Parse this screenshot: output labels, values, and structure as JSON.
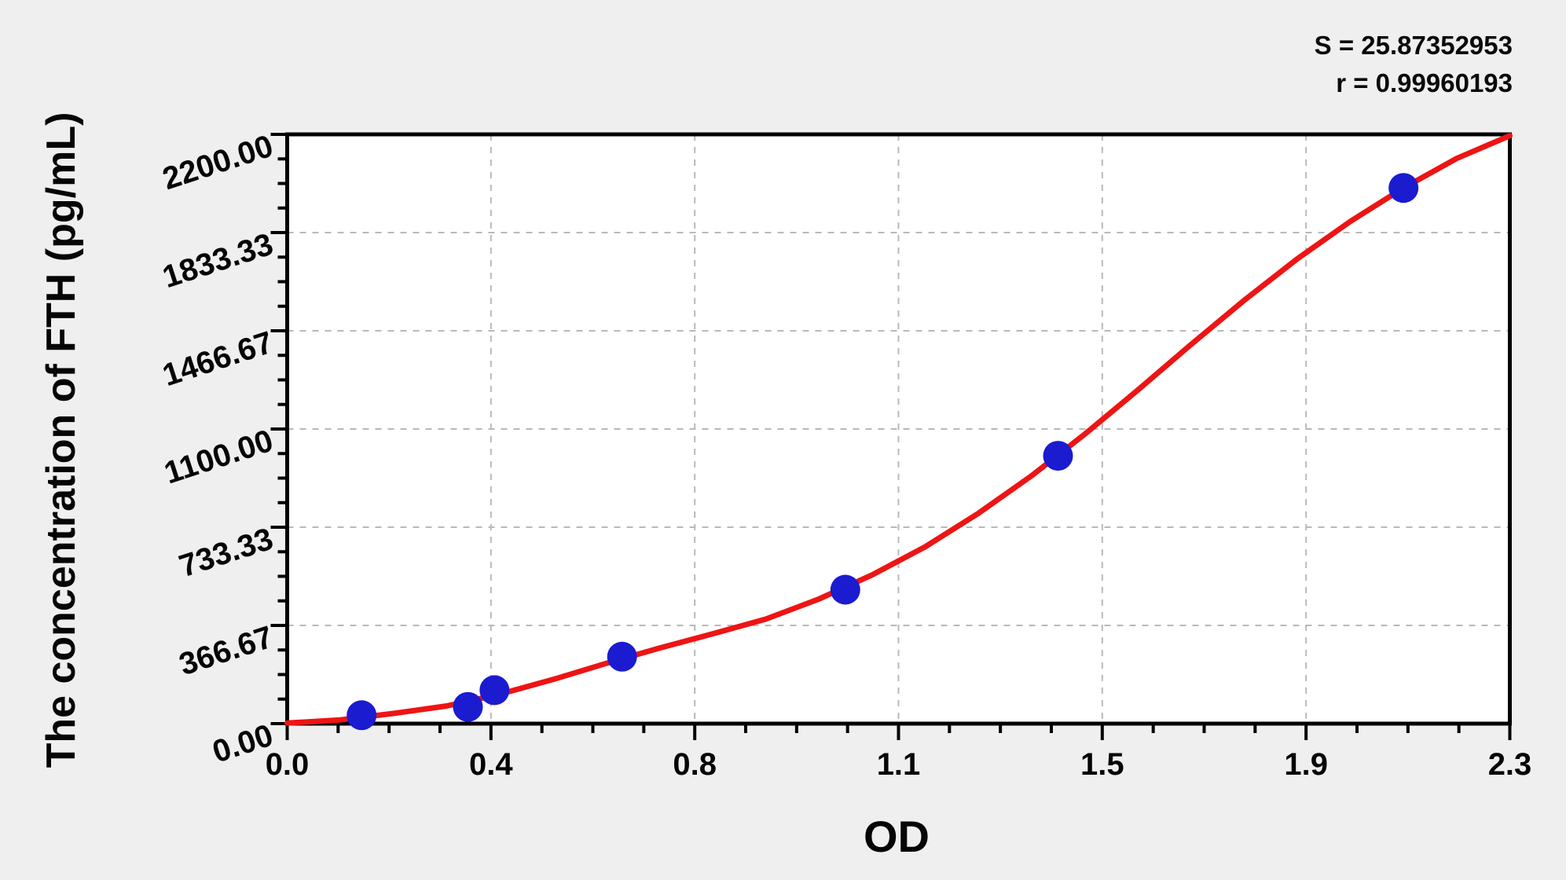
{
  "window": {
    "background": "#efefef",
    "plot_background": "#ffffff"
  },
  "stats": {
    "s_label": "S = 25.87352953",
    "r_label": "r = 0.99960193"
  },
  "chart_data": {
    "type": "scatter",
    "title": "",
    "xlabel": "OD",
    "ylabel": "The concentration of FTH (pg/mL)",
    "xlim": [
      0.0,
      2.3
    ],
    "ylim": [
      0.0,
      2200.0
    ],
    "x_ticks": [
      0.0,
      0.3833,
      0.7667,
      1.15,
      1.5333,
      1.9167,
      2.3
    ],
    "x_tick_labels": [
      "0.0",
      "0.4",
      "0.8",
      "1.1",
      "1.5",
      "1.9",
      "2.3"
    ],
    "y_ticks": [
      0.0,
      366.67,
      733.33,
      1100.0,
      1466.67,
      1833.33,
      2200.0
    ],
    "y_tick_labels": [
      "0.00",
      "366.67",
      "733.33",
      "1100.00",
      "1466.67",
      "1833.33",
      "2200.00"
    ],
    "minor_tick_divisions": 4,
    "grid": {
      "major": true,
      "style": "dashed",
      "color": "#b9b9b9"
    },
    "legend": null,
    "annotations": [
      "S = 25.87352953",
      "r = 0.99960193"
    ],
    "fit": {
      "S": 25.87352953,
      "r": 0.99960193
    },
    "series": [
      {
        "name": "standard-points",
        "type": "scatter",
        "color": "#1b1bd0",
        "marker": "circle",
        "points": [
          {
            "od": 0.14,
            "concentration": 31.25
          },
          {
            "od": 0.34,
            "concentration": 62.5
          },
          {
            "od": 0.39,
            "concentration": 125
          },
          {
            "od": 0.63,
            "concentration": 250
          },
          {
            "od": 1.05,
            "concentration": 500
          },
          {
            "od": 1.45,
            "concentration": 1000
          },
          {
            "od": 2.1,
            "concentration": 2000
          }
        ]
      },
      {
        "name": "fitted-curve",
        "type": "line",
        "color": "#ee1414",
        "x": [
          0.0,
          0.1,
          0.2,
          0.3,
          0.4,
          0.5,
          0.6,
          0.7,
          0.8,
          0.9,
          1.0,
          1.1,
          1.2,
          1.3,
          1.4,
          1.5,
          1.6,
          1.7,
          1.8,
          1.9,
          2.0,
          2.1,
          2.2,
          2.3
        ],
        "y": [
          2,
          14,
          38,
          66,
          110,
          165,
          225,
          282,
          335,
          390,
          465,
          555,
          660,
          785,
          925,
          1080,
          1245,
          1415,
          1580,
          1735,
          1875,
          2000,
          2110,
          2195
        ]
      }
    ]
  }
}
